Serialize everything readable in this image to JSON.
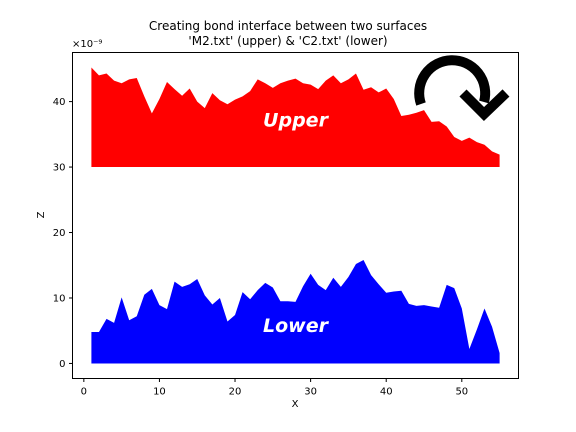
{
  "chart_data": {
    "type": "area",
    "title_line1": "Creating bond interface between two surfaces",
    "title_line2": "'M2.txt' (upper) & 'C2.txt' (lower)",
    "xlabel": "X",
    "ylabel": "Z",
    "y_scale_label": "×10⁻⁹",
    "xlim": [
      -1.5,
      57.5
    ],
    "ylim": [
      -2.3,
      47.5
    ],
    "xticks": [
      0,
      10,
      20,
      30,
      40,
      50
    ],
    "yticks": [
      0,
      10,
      20,
      30,
      40
    ],
    "series": [
      {
        "label": "Upper",
        "color": "#ff0000",
        "baseline": 30,
        "x": [
          1,
          2,
          3,
          4,
          5,
          6,
          7,
          8,
          9,
          10,
          11,
          12,
          13,
          14,
          15,
          16,
          17,
          18,
          19,
          20,
          21,
          22,
          23,
          24,
          25,
          26,
          27,
          28,
          29,
          30,
          31,
          32,
          33,
          34,
          35,
          36,
          37,
          38,
          39,
          40,
          41,
          42,
          43,
          44,
          45,
          46,
          47,
          48,
          49,
          50,
          51,
          52,
          53,
          54,
          55
        ],
        "values": [
          45.2,
          44.0,
          44.3,
          43.2,
          42.8,
          43.4,
          43.6,
          40.8,
          38.2,
          40.4,
          43.0,
          41.9,
          40.9,
          42.0,
          40.0,
          39.0,
          41.3,
          40.2,
          39.6,
          40.3,
          40.8,
          41.6,
          43.4,
          42.8,
          42.1,
          42.8,
          43.2,
          43.5,
          42.8,
          42.6,
          41.9,
          43.2,
          44.0,
          42.8,
          43.4,
          44.3,
          41.8,
          42.2,
          41.4,
          42.0,
          40.4,
          37.8,
          38.0,
          38.3,
          38.7,
          36.9,
          37.0,
          36.2,
          34.6,
          34.0,
          34.5,
          33.8,
          33.4,
          32.4,
          31.9
        ]
      },
      {
        "label": "Lower",
        "color": "#0000ff",
        "baseline": 0,
        "x": [
          1,
          2,
          3,
          4,
          5,
          6,
          7,
          8,
          9,
          10,
          11,
          12,
          13,
          14,
          15,
          16,
          17,
          18,
          19,
          20,
          21,
          22,
          23,
          24,
          25,
          26,
          27,
          28,
          29,
          30,
          31,
          32,
          33,
          34,
          35,
          36,
          37,
          38,
          39,
          40,
          41,
          42,
          43,
          44,
          45,
          46,
          47,
          48,
          49,
          50,
          51,
          52,
          53,
          54,
          55
        ],
        "values": [
          4.8,
          4.8,
          6.8,
          6.2,
          10.1,
          6.6,
          7.2,
          10.5,
          11.4,
          8.9,
          8.3,
          12.5,
          11.7,
          12.1,
          12.9,
          10.4,
          9.0,
          10.0,
          6.4,
          7.4,
          10.9,
          9.8,
          11.2,
          12.3,
          11.6,
          9.5,
          9.5,
          9.4,
          11.8,
          13.7,
          12.0,
          11.2,
          13.1,
          11.7,
          13.2,
          15.2,
          15.8,
          13.5,
          12.1,
          10.8,
          11.0,
          11.1,
          9.1,
          8.8,
          8.9,
          8.7,
          8.5,
          12.0,
          11.5,
          8.4,
          2.2,
          5.2,
          8.4,
          5.6,
          1.6
        ]
      }
    ],
    "rotate_symbol": "clockwise-arrow-icon"
  }
}
